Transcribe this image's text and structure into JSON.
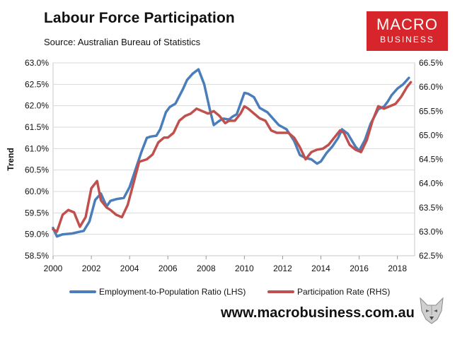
{
  "header": {
    "title": "Labour Force Participation",
    "subtitle": "Source: Australian Bureau of Statistics"
  },
  "brand": {
    "line1": "MACRO",
    "line2": "BUSINESS",
    "color": "#d7262b"
  },
  "footer": {
    "site": "www.macrobusiness.com.au",
    "mascot_icon": "wolf-icon"
  },
  "chart_data": {
    "type": "line",
    "title": "Labour Force Participation",
    "subtitle": "Source: Australian Bureau of Statistics",
    "ylabel": "Trend",
    "xlim": [
      2000,
      2018.9
    ],
    "ylim_left": [
      58.5,
      63.0
    ],
    "ylim_right": [
      62.5,
      66.5
    ],
    "x_ticks": [
      "2000",
      "2002",
      "2004",
      "2006",
      "2008",
      "2010",
      "2012",
      "2014",
      "2016",
      "2018"
    ],
    "y_left_ticks": [
      "58.5%",
      "59.0%",
      "59.5%",
      "60.0%",
      "60.5%",
      "61.0%",
      "61.5%",
      "62.0%",
      "62.5%",
      "63.0%"
    ],
    "y_right_ticks": [
      "62.5%",
      "63.0%",
      "63.5%",
      "64.0%",
      "64.5%",
      "65.0%",
      "65.5%",
      "66.0%",
      "66.5%"
    ],
    "grid": true,
    "legend_position": "bottom",
    "series": [
      {
        "name": "Employment-to-Population Ratio (LHS)",
        "axis": "left",
        "color": "#4a7ebb",
        "x": [
          2000.0,
          2000.2,
          2000.5,
          2001.0,
          2001.3,
          2001.6,
          2001.9,
          2002.2,
          2002.5,
          2002.8,
          2003.0,
          2003.3,
          2003.7,
          2004.0,
          2004.3,
          2004.6,
          2004.9,
          2005.1,
          2005.4,
          2005.6,
          2005.9,
          2006.1,
          2006.4,
          2006.8,
          2007.0,
          2007.3,
          2007.6,
          2007.9,
          2008.2,
          2008.4,
          2008.7,
          2008.9,
          2009.2,
          2009.4,
          2009.6,
          2009.8,
          2010.0,
          2010.2,
          2010.5,
          2010.8,
          2011.2,
          2011.5,
          2011.8,
          2012.2,
          2012.6,
          2012.9,
          2013.2,
          2013.5,
          2013.8,
          2014.0,
          2014.3,
          2014.6,
          2014.9,
          2015.1,
          2015.4,
          2015.8,
          2016.0,
          2016.3,
          2016.6,
          2017.0,
          2017.3,
          2017.5,
          2017.7,
          2018.0,
          2018.3,
          2018.6
        ],
        "values": [
          59.15,
          58.95,
          59.0,
          59.02,
          59.05,
          59.08,
          59.3,
          59.8,
          59.95,
          59.65,
          59.78,
          59.82,
          59.85,
          60.1,
          60.5,
          60.9,
          61.25,
          61.28,
          61.3,
          61.45,
          61.85,
          61.97,
          62.05,
          62.4,
          62.6,
          62.75,
          62.85,
          62.5,
          61.9,
          61.55,
          61.65,
          61.7,
          61.68,
          61.75,
          61.8,
          62.05,
          62.3,
          62.28,
          62.2,
          61.95,
          61.85,
          61.7,
          61.55,
          61.45,
          61.18,
          60.85,
          60.78,
          60.75,
          60.65,
          60.7,
          60.9,
          61.05,
          61.25,
          61.45,
          61.35,
          61.05,
          60.95,
          61.2,
          61.58,
          61.92,
          61.98,
          62.1,
          62.25,
          62.4,
          62.5,
          62.65
        ]
      },
      {
        "name": "Participation Rate (RHS)",
        "axis": "right",
        "color": "#c0504d",
        "x": [
          2000.0,
          2000.2,
          2000.5,
          2000.8,
          2001.1,
          2001.4,
          2001.7,
          2002.0,
          2002.3,
          2002.5,
          2002.8,
          2003.0,
          2003.3,
          2003.6,
          2003.9,
          2004.2,
          2004.5,
          2004.9,
          2005.2,
          2005.5,
          2005.8,
          2006.0,
          2006.3,
          2006.6,
          2006.9,
          2007.2,
          2007.5,
          2007.8,
          2008.1,
          2008.4,
          2008.7,
          2009.0,
          2009.2,
          2009.5,
          2009.8,
          2010.0,
          2010.2,
          2010.5,
          2010.8,
          2011.1,
          2011.4,
          2011.7,
          2012.0,
          2012.3,
          2012.6,
          2012.9,
          2013.2,
          2013.5,
          2013.8,
          2014.1,
          2014.4,
          2014.7,
          2015.0,
          2015.2,
          2015.5,
          2015.8,
          2016.1,
          2016.4,
          2016.7,
          2017.0,
          2017.3,
          2017.6,
          2017.9,
          2018.2,
          2018.5,
          2018.7
        ],
        "values": [
          63.05,
          63.0,
          63.35,
          63.45,
          63.4,
          63.1,
          63.3,
          63.9,
          64.05,
          63.65,
          63.5,
          63.45,
          63.35,
          63.3,
          63.55,
          64.0,
          64.45,
          64.5,
          64.6,
          64.85,
          64.95,
          64.95,
          65.05,
          65.3,
          65.4,
          65.45,
          65.55,
          65.5,
          65.45,
          65.5,
          65.4,
          65.25,
          65.3,
          65.3,
          65.45,
          65.6,
          65.55,
          65.45,
          65.35,
          65.3,
          65.1,
          65.05,
          65.05,
          65.05,
          64.95,
          64.75,
          64.5,
          64.65,
          64.7,
          64.72,
          64.8,
          64.95,
          65.1,
          65.05,
          64.8,
          64.7,
          64.65,
          64.9,
          65.3,
          65.6,
          65.55,
          65.6,
          65.65,
          65.8,
          66.0,
          66.1
        ]
      }
    ]
  }
}
